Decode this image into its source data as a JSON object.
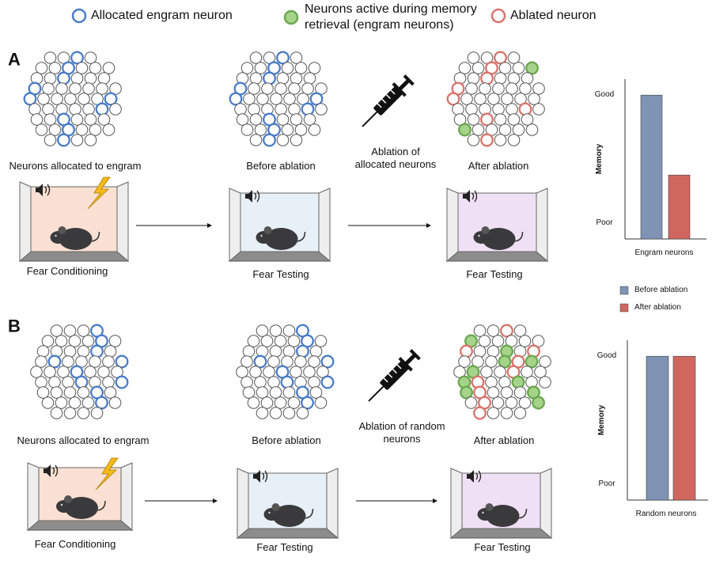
{
  "legend": [
    {
      "label": "Allocated engram neuron",
      "color": "#4a7cc9"
    },
    {
      "label": "Neurons active during memory retrieval (engram neurons)",
      "color": "#6aa84f"
    },
    {
      "label": "Ablated neuron",
      "color": "#d9736b"
    }
  ],
  "bar_series": [
    {
      "name": "Before ablation",
      "color": "#7f93b5"
    },
    {
      "name": "After ablation",
      "color": "#d0675f"
    }
  ],
  "panels": [
    {
      "label": "A",
      "engram_label": "Neurons allocated to engram",
      "before_label": "Before ablation",
      "ablation_label": "Ablation of allocated neurons",
      "after_label": "After ablation",
      "stages": [
        "Fear Conditioning",
        "Fear Testing",
        "Fear Testing"
      ],
      "chart": {
        "type": "bar",
        "y_label": "Memory",
        "x_label": "Engram neurons",
        "ylim": [
          0,
          10
        ],
        "yticks": [
          {
            "value": 1,
            "label": "Poor"
          },
          {
            "value": 9,
            "label": "Good"
          }
        ],
        "values": [
          9,
          4
        ]
      }
    },
    {
      "label": "B",
      "engram_label": "Neurons allocated to engram",
      "before_label": "Before ablation",
      "ablation_label": "Ablation of random neurons",
      "after_label": "After ablation",
      "stages": [
        "Fear Conditioning",
        "Fear Testing",
        "Fear Testing"
      ],
      "chart": {
        "type": "bar",
        "y_label": "Memory",
        "x_label": "Random neurons",
        "ylim": [
          0,
          10
        ],
        "yticks": [
          {
            "value": 1,
            "label": "Poor"
          },
          {
            "value": 9,
            "label": "Good"
          }
        ],
        "values": [
          9,
          9
        ]
      }
    }
  ]
}
